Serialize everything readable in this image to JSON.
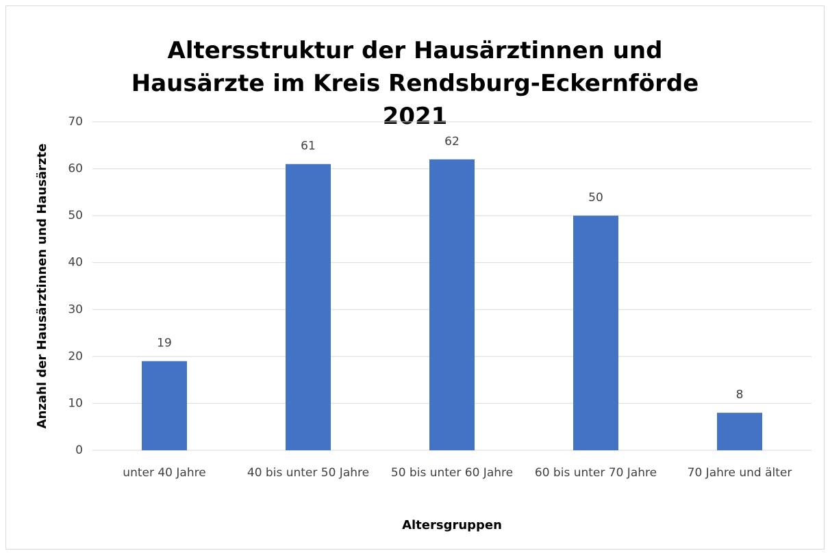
{
  "chart_data": {
    "type": "bar",
    "title": "Altersstruktur der Hausärztinnen und Hausärzte im Kreis Rendsburg-Eckernförde 2021",
    "xlabel": "Altersgruppen",
    "ylabel": "Anzahl der Hausärztinnen und Hausärzte",
    "categories": [
      "unter 40 Jahre",
      "40 bis unter 50 Jahre",
      "50 bis unter 60 Jahre",
      "60 bis unter 70 Jahre",
      "70 Jahre und älter"
    ],
    "values": [
      19,
      61,
      62,
      50,
      8
    ],
    "color": "#4472c4",
    "ylim": [
      0,
      70
    ],
    "yticks": [
      0,
      10,
      20,
      30,
      40,
      50,
      60,
      70
    ],
    "grid": true
  }
}
